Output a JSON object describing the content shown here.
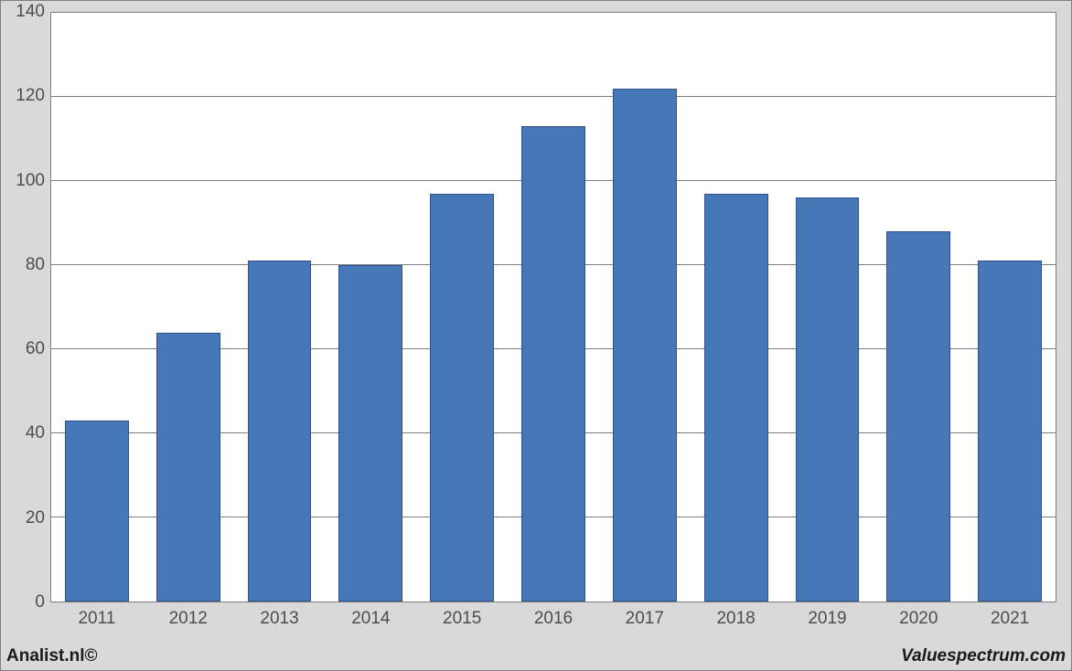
{
  "chart": {
    "type": "bar",
    "categories": [
      "2011",
      "2012",
      "2013",
      "2014",
      "2015",
      "2016",
      "2017",
      "2018",
      "2019",
      "2020",
      "2021"
    ],
    "values": [
      43,
      64,
      81,
      80,
      97,
      113,
      122,
      97,
      96,
      88,
      81
    ],
    "bar_color": "#4677b7",
    "bar_border_color": "#2f528f",
    "bar_width_ratio": 0.7,
    "ylim_min": 0,
    "ylim_max": 140,
    "ytick_step": 20,
    "background_color": "#ffffff",
    "panel_background": "#d9d9d9",
    "grid_color": "#808080",
    "axis_border_color": "#808080",
    "axis_font_size_px": 19,
    "axis_text_color": "#4d4d4d"
  },
  "credits": {
    "left": "Analist.nl©",
    "right": "Valuespectrum.com"
  }
}
